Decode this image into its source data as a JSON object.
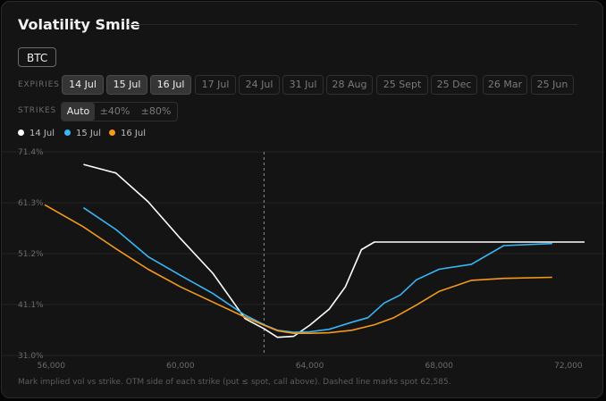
{
  "header": {
    "title": "Volatility Smile"
  },
  "asset": {
    "label": "BTC"
  },
  "expiries": {
    "label": "EXPIRIES",
    "items": [
      {
        "label": "14 Jul",
        "selected": true
      },
      {
        "label": "15 Jul",
        "selected": true
      },
      {
        "label": "16 Jul",
        "selected": true
      },
      {
        "label": "17 Jul",
        "selected": false
      },
      {
        "label": "24 Jul",
        "selected": false
      },
      {
        "label": "31 Jul",
        "selected": false
      },
      {
        "label": "28 Aug",
        "selected": false
      },
      {
        "label": "25 Sept",
        "selected": false
      },
      {
        "label": "25 Dec",
        "selected": false
      },
      {
        "label": "26 Mar",
        "selected": false
      },
      {
        "label": "25 Jun",
        "selected": false
      }
    ]
  },
  "strikes": {
    "label": "STRIKES",
    "options": [
      {
        "label": "Auto",
        "selected": true
      },
      {
        "label": "±40%",
        "selected": false
      },
      {
        "label": "±80%",
        "selected": false
      }
    ]
  },
  "legend": [
    {
      "label": "14 Jul",
      "color": "#ffffff"
    },
    {
      "label": "15 Jul",
      "color": "#38b6f5"
    },
    {
      "label": "16 Jul",
      "color": "#f59a1b"
    }
  ],
  "chart_data": {
    "type": "line",
    "xlabel": "",
    "ylabel": "",
    "xlim": [
      55800,
      72500
    ],
    "ylim": [
      31.0,
      71.4
    ],
    "x_ticks": [
      "56,000",
      "60,000",
      "64,000",
      "68,000",
      "72,000"
    ],
    "x_tick_values": [
      56000,
      60000,
      64000,
      68000,
      72000
    ],
    "y_ticks": [
      "71.4%",
      "61.3%",
      "51.2%",
      "41.1%",
      "31.0%"
    ],
    "y_tick_values": [
      71.4,
      61.3,
      51.2,
      41.1,
      31.0
    ],
    "spot": 62585,
    "grid": "horizontal",
    "series": [
      {
        "name": "14 Jul",
        "color": "#ffffff",
        "points": [
          [
            57000,
            68.9
          ],
          [
            58000,
            67.2
          ],
          [
            59000,
            61.5
          ],
          [
            60000,
            54.2
          ],
          [
            61000,
            47.3
          ],
          [
            62000,
            38.3
          ],
          [
            62585,
            36.3
          ],
          [
            63000,
            34.6
          ],
          [
            63500,
            34.8
          ],
          [
            64000,
            37.0
          ],
          [
            64600,
            40.2
          ],
          [
            65100,
            44.6
          ],
          [
            65600,
            52.0
          ],
          [
            66000,
            53.5
          ],
          [
            67000,
            53.5
          ],
          [
            68000,
            53.5
          ],
          [
            69000,
            53.5
          ],
          [
            70000,
            53.5
          ],
          [
            71000,
            53.5
          ],
          [
            72000,
            53.5
          ],
          [
            72500,
            53.5
          ]
        ]
      },
      {
        "name": "15 Jul",
        "color": "#38b6f5",
        "points": [
          [
            57000,
            60.3
          ],
          [
            58000,
            56.0
          ],
          [
            59000,
            50.6
          ],
          [
            60000,
            46.9
          ],
          [
            61000,
            43.3
          ],
          [
            62000,
            39.0
          ],
          [
            62585,
            37.1
          ],
          [
            63000,
            36.0
          ],
          [
            63500,
            35.6
          ],
          [
            64000,
            35.7
          ],
          [
            64600,
            36.2
          ],
          [
            65300,
            37.6
          ],
          [
            65800,
            38.5
          ],
          [
            66300,
            41.4
          ],
          [
            66800,
            43.0
          ],
          [
            67300,
            46.0
          ],
          [
            68000,
            48.1
          ],
          [
            69000,
            49.1
          ],
          [
            70000,
            52.8
          ],
          [
            71500,
            53.2
          ]
        ]
      },
      {
        "name": "16 Jul",
        "color": "#f59a1b",
        "points": [
          [
            55800,
            60.9
          ],
          [
            57000,
            56.5
          ],
          [
            58000,
            52.2
          ],
          [
            59000,
            48.1
          ],
          [
            60000,
            44.6
          ],
          [
            61000,
            41.6
          ],
          [
            62000,
            38.6
          ],
          [
            62585,
            37.0
          ],
          [
            63000,
            35.9
          ],
          [
            63500,
            35.4
          ],
          [
            64000,
            35.4
          ],
          [
            64600,
            35.5
          ],
          [
            65300,
            36.0
          ],
          [
            66000,
            37.1
          ],
          [
            66600,
            38.5
          ],
          [
            67300,
            41.0
          ],
          [
            68000,
            43.7
          ],
          [
            69000,
            45.9
          ],
          [
            70000,
            46.3
          ],
          [
            71500,
            46.5
          ]
        ]
      }
    ]
  },
  "footnote": "Mark implied vol vs strike. OTM side of each strike (put ≤ spot, call above). Dashed line marks spot 62,585."
}
